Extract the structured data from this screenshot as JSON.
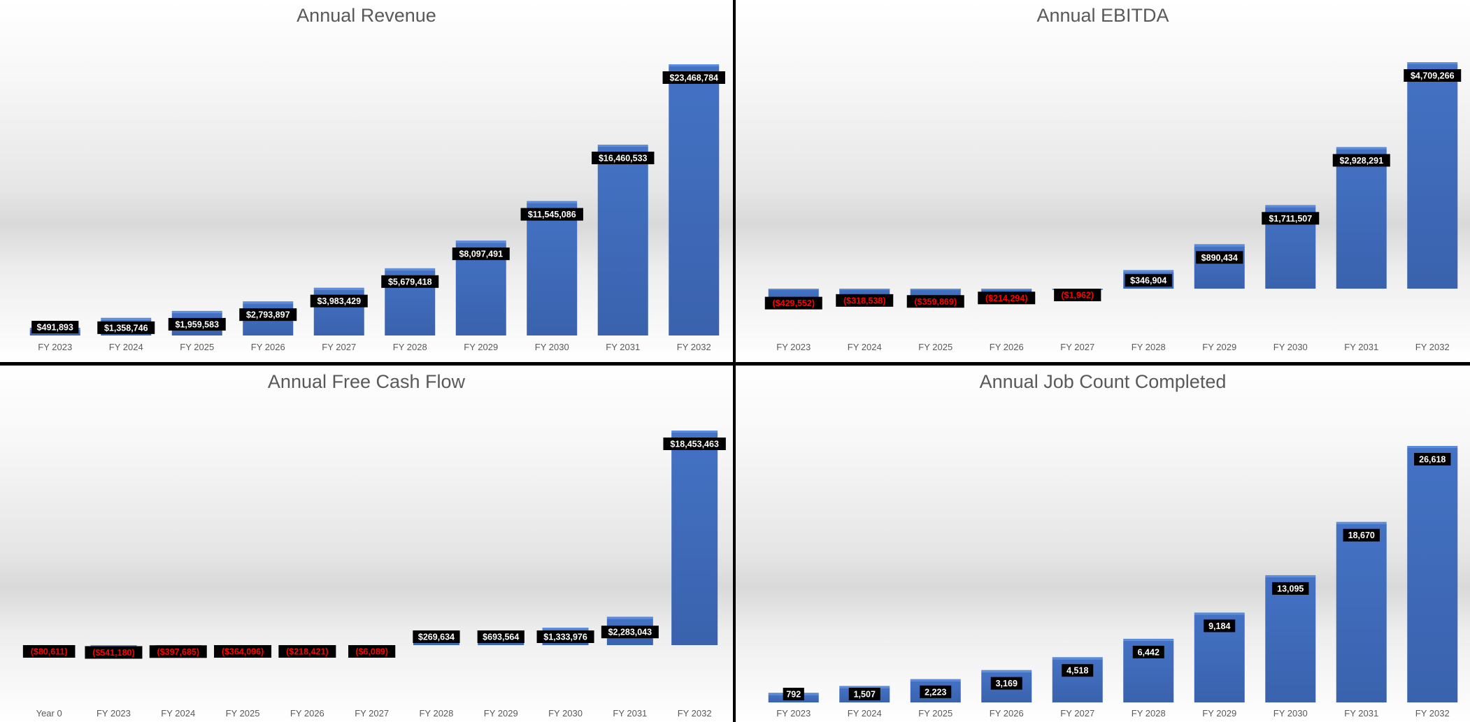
{
  "colors": {
    "bar": "#4472C4",
    "bar_dark": "#3A62AD",
    "label_bg": "#000000",
    "label_pos": "#FFFFFF",
    "label_neg": "#FF0000"
  },
  "chart_data": [
    {
      "type": "bar",
      "title": "Annual Revenue",
      "categories": [
        "FY 2023",
        "FY 2024",
        "FY 2025",
        "FY 2026",
        "FY 2027",
        "FY 2028",
        "FY 2029",
        "FY 2030",
        "FY 2031",
        "FY 2032"
      ],
      "values": [
        491893,
        1358746,
        1959583,
        2793897,
        3983429,
        5679418,
        8097491,
        11545086,
        16460533,
        23468784
      ],
      "labels": [
        "$491,893",
        "$1,358,746",
        "$1,959,583",
        "$2,793,897",
        "$3,983,429",
        "$5,679,418",
        "$8,097,491",
        "$11,545,086",
        "$16,460,533",
        "$23,468,784"
      ],
      "xlabel": "",
      "ylabel": "",
      "grid": false,
      "legend": "none"
    },
    {
      "type": "bar",
      "title": "Annual EBITDA",
      "categories": [
        "FY 2023",
        "FY 2024",
        "FY 2025",
        "FY 2026",
        "FY 2027",
        "FY 2028",
        "FY 2029",
        "FY 2030",
        "FY 2031",
        "FY 2032"
      ],
      "values": [
        -429552,
        -318538,
        -359869,
        -214294,
        -1962,
        346904,
        890434,
        1711507,
        2928291,
        4709266
      ],
      "labels": [
        "($429,552)",
        "($318,538)",
        "($359,869)",
        "($214,294)",
        "($1,962)",
        "$346,904",
        "$890,434",
        "$1,711,507",
        "$2,928,291",
        "$4,709,266"
      ],
      "xlabel": "",
      "ylabel": "",
      "grid": false,
      "legend": "none"
    },
    {
      "type": "bar",
      "title": "Annual Free Cash Flow",
      "categories": [
        "Year 0",
        "FY 2023",
        "FY 2024",
        "FY 2025",
        "FY 2026",
        "FY 2027",
        "FY 2028",
        "FY 2029",
        "FY 2030",
        "FY 2031",
        "FY 2032"
      ],
      "values": [
        -80611,
        -541180,
        -397685,
        -364096,
        -218421,
        -6089,
        269634,
        693564,
        1333976,
        2283043,
        18453463
      ],
      "labels": [
        "($80,611)",
        "($541,180)",
        "($397,685)",
        "($364,096)",
        "($218,421)",
        "($6,089)",
        "$269,634",
        "$693,564",
        "$1,333,976",
        "$2,283,043",
        "$18,453,463"
      ],
      "xlabel": "",
      "ylabel": "",
      "grid": false,
      "legend": "none"
    },
    {
      "type": "bar",
      "title": "Annual Job Count Completed",
      "categories": [
        "FY 2023",
        "FY 2024",
        "FY 2025",
        "FY 2026",
        "FY 2027",
        "FY 2028",
        "FY 2029",
        "FY 2030",
        "FY 2031",
        "FY 2032"
      ],
      "values": [
        792,
        1507,
        2223,
        3169,
        4518,
        6442,
        9184,
        13095,
        18670,
        26618
      ],
      "labels": [
        "792",
        "1,507",
        "2,223",
        "3,169",
        "4,518",
        "6,442",
        "9,184",
        "13,095",
        "18,670",
        "26,618"
      ],
      "xlabel": "",
      "ylabel": "",
      "grid": false,
      "legend": "none"
    }
  ]
}
